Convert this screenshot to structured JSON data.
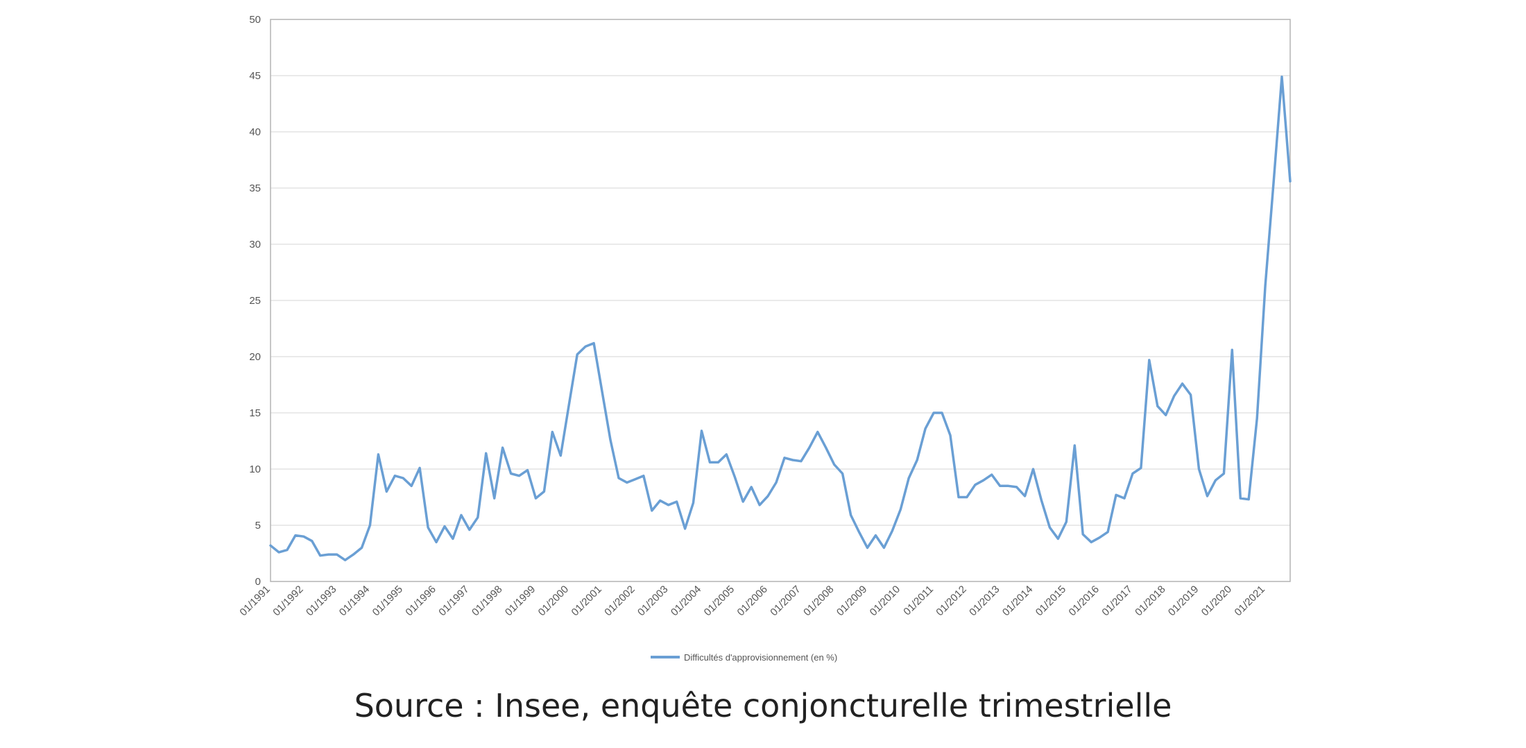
{
  "chart_data": {
    "type": "line",
    "title": "",
    "xlabel": "",
    "ylabel": "",
    "ylim": [
      0,
      50
    ],
    "yticks": [
      0,
      5,
      10,
      15,
      20,
      25,
      30,
      35,
      40,
      45,
      50
    ],
    "xtick_labels": [
      "01/1991",
      "01/1992",
      "01/1993",
      "01/1994",
      "01/1995",
      "01/1996",
      "01/1997",
      "01/1998",
      "01/1999",
      "01/2000",
      "01/2001",
      "01/2002",
      "01/2003",
      "01/2004",
      "01/2005",
      "01/2006",
      "01/2007",
      "01/2008",
      "01/2009",
      "01/2010",
      "01/2011",
      "01/2012",
      "01/2013",
      "01/2014",
      "01/2015",
      "01/2016",
      "01/2017",
      "01/2018",
      "01/2019",
      "01/2020",
      "01/2021"
    ],
    "grid": "horizontal",
    "legend_position": "bottom",
    "series": [
      {
        "name": "Difficultés d'approvisionnement (en %)",
        "color": "#6a9fd4",
        "x": [
          "1991-Q1",
          "1991-Q2",
          "1991-Q3",
          "1991-Q4",
          "1992-Q1",
          "1992-Q2",
          "1992-Q3",
          "1992-Q4",
          "1993-Q1",
          "1993-Q2",
          "1993-Q3",
          "1993-Q4",
          "1994-Q1",
          "1994-Q2",
          "1994-Q3",
          "1994-Q4",
          "1995-Q1",
          "1995-Q2",
          "1995-Q3",
          "1995-Q4",
          "1996-Q1",
          "1996-Q2",
          "1996-Q3",
          "1996-Q4",
          "1997-Q1",
          "1997-Q2",
          "1997-Q3",
          "1997-Q4",
          "1998-Q1",
          "1998-Q2",
          "1998-Q3",
          "1998-Q4",
          "1999-Q1",
          "1999-Q2",
          "1999-Q3",
          "1999-Q4",
          "2000-Q1",
          "2000-Q2",
          "2000-Q3",
          "2000-Q4",
          "2001-Q1",
          "2001-Q2",
          "2001-Q3",
          "2001-Q4",
          "2002-Q1",
          "2002-Q2",
          "2002-Q3",
          "2002-Q4",
          "2003-Q1",
          "2003-Q2",
          "2003-Q3",
          "2003-Q4",
          "2004-Q1",
          "2004-Q2",
          "2004-Q3",
          "2004-Q4",
          "2005-Q1",
          "2005-Q2",
          "2005-Q3",
          "2005-Q4",
          "2006-Q1",
          "2006-Q2",
          "2006-Q3",
          "2006-Q4",
          "2007-Q1",
          "2007-Q2",
          "2007-Q3",
          "2007-Q4",
          "2008-Q1",
          "2008-Q2",
          "2008-Q3",
          "2008-Q4",
          "2009-Q1",
          "2009-Q2",
          "2009-Q3",
          "2009-Q4",
          "2010-Q1",
          "2010-Q2",
          "2010-Q3",
          "2010-Q4",
          "2011-Q1",
          "2011-Q2",
          "2011-Q3",
          "2011-Q4",
          "2012-Q1",
          "2012-Q2",
          "2012-Q3",
          "2012-Q4",
          "2013-Q1",
          "2013-Q2",
          "2013-Q3",
          "2013-Q4",
          "2014-Q1",
          "2014-Q2",
          "2014-Q3",
          "2014-Q4",
          "2015-Q1",
          "2015-Q2",
          "2015-Q3",
          "2015-Q4",
          "2016-Q1",
          "2016-Q2",
          "2016-Q3",
          "2016-Q4",
          "2017-Q1",
          "2017-Q2",
          "2017-Q3",
          "2017-Q4",
          "2018-Q1",
          "2018-Q2",
          "2018-Q3",
          "2018-Q4",
          "2019-Q1",
          "2019-Q2",
          "2019-Q3",
          "2019-Q4",
          "2020-Q1",
          "2020-Q2",
          "2020-Q3",
          "2020-Q4",
          "2021-Q1",
          "2021-Q2",
          "2021-Q3",
          "2021-Q4"
        ],
        "values": [
          3.2,
          2.6,
          2.8,
          4.1,
          4.0,
          3.6,
          2.3,
          2.4,
          2.4,
          1.9,
          2.4,
          3.0,
          5.0,
          11.3,
          8.0,
          9.4,
          9.2,
          8.5,
          10.1,
          4.8,
          3.5,
          4.9,
          3.8,
          5.9,
          4.6,
          5.7,
          11.4,
          7.4,
          11.9,
          9.6,
          9.4,
          9.9,
          7.4,
          8.0,
          13.3,
          11.2,
          15.7,
          20.2,
          20.9,
          21.2,
          16.9,
          12.6,
          9.2,
          8.8,
          9.1,
          9.4,
          6.3,
          7.2,
          6.8,
          7.1,
          4.7,
          7.0,
          13.4,
          10.6,
          10.6,
          11.3,
          9.3,
          7.1,
          8.4,
          6.8,
          7.6,
          8.8,
          11.0,
          10.8,
          10.7,
          11.9,
          13.3,
          11.9,
          10.4,
          9.6,
          5.9,
          4.4,
          3.0,
          4.1,
          3.0,
          4.5,
          6.4,
          9.2,
          10.8,
          13.6,
          15.0,
          15.0,
          13.0,
          7.5,
          7.5,
          8.6,
          9.0,
          9.5,
          8.5,
          8.5,
          8.4,
          7.6,
          10.0,
          7.2,
          4.8,
          3.8,
          5.3,
          12.1,
          4.2,
          3.5,
          3.9,
          4.4,
          7.7,
          7.4,
          9.6,
          10.1,
          19.7,
          15.6,
          14.8,
          16.5,
          17.6,
          16.6,
          10.0,
          7.6,
          9.0,
          9.6,
          20.6,
          7.4,
          7.3,
          14.5,
          26.3,
          35.5,
          44.9,
          35.6
        ]
      }
    ]
  },
  "source_text": "Source : Insee, enquête conjoncturelle trimestrielle"
}
